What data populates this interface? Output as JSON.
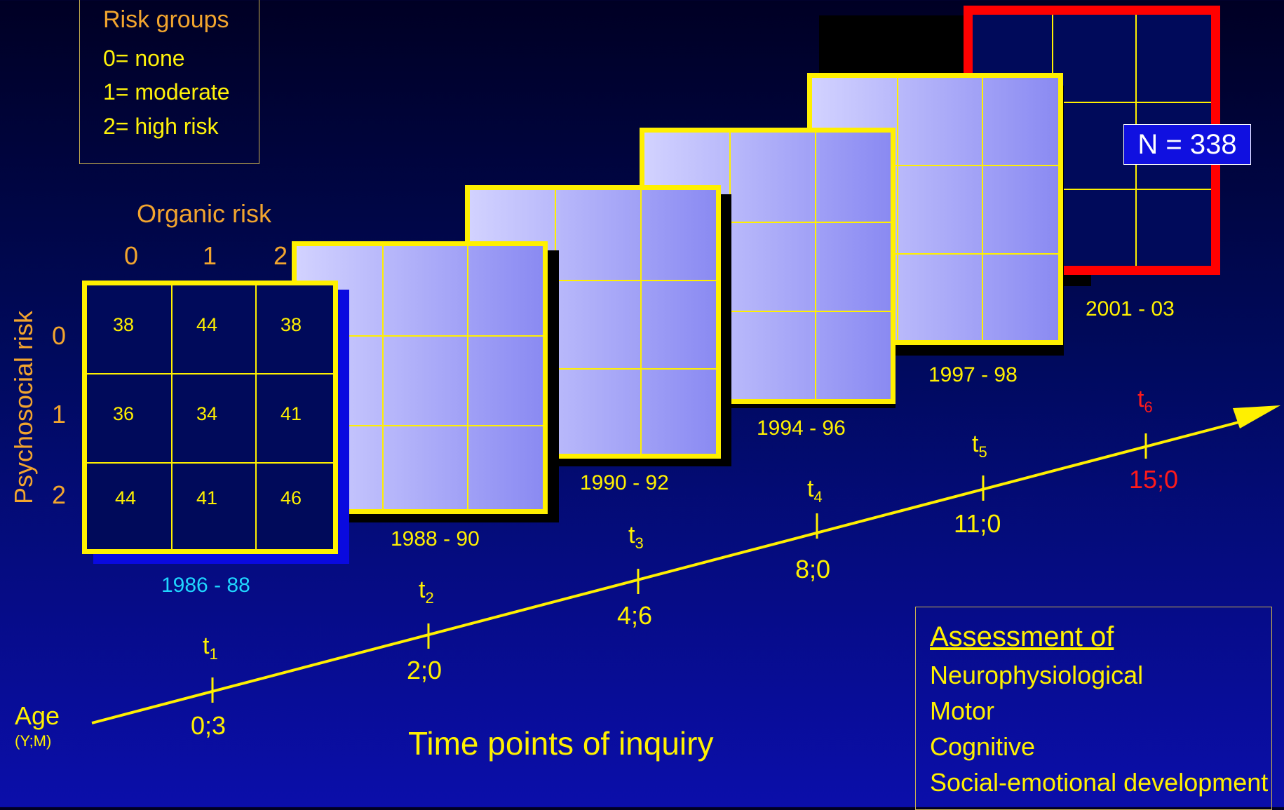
{
  "legend": {
    "title": "Risk groups",
    "items": [
      "0= none",
      "1= moderate",
      "2= high risk"
    ]
  },
  "organic": {
    "title": "Organic risk",
    "levels": [
      "0",
      "1",
      "2"
    ]
  },
  "psychosocial": {
    "title": "Psychosocial risk",
    "levels": [
      "0",
      "1",
      "2"
    ]
  },
  "matrix": {
    "rows": [
      [
        "38",
        "44",
        "38"
      ],
      [
        "36",
        "34",
        "41"
      ],
      [
        "44",
        "41",
        "46"
      ]
    ]
  },
  "periods": [
    "1986 - 88",
    "1988 - 90",
    "1990 - 92",
    "1994 - 96",
    "1997 - 98",
    "2001 - 03"
  ],
  "sample": {
    "label": "N = 338"
  },
  "timeline": {
    "points": [
      {
        "t": "t",
        "sub": "1",
        "age": "0;3"
      },
      {
        "t": "t",
        "sub": "2",
        "age": "2;0"
      },
      {
        "t": "t",
        "sub": "3",
        "age": "4;6"
      },
      {
        "t": "t",
        "sub": "4",
        "age": "8;0"
      },
      {
        "t": "t",
        "sub": "5",
        "age": "11;0"
      },
      {
        "t": "t",
        "sub": "6",
        "age": "15;0"
      }
    ],
    "age_title": "Age",
    "age_unit": "(Y;M)",
    "axis_title": "Time points of inquiry"
  },
  "assessment": {
    "title": "Assessment of",
    "items": [
      "Neurophysiological",
      "Motor",
      "Cognitive",
      "Social-emotional development"
    ]
  },
  "colors": {
    "yellow": "#FFF000",
    "orange": "#F2A52E",
    "red": "#FF0000",
    "cyan": "#1FD6FF"
  }
}
